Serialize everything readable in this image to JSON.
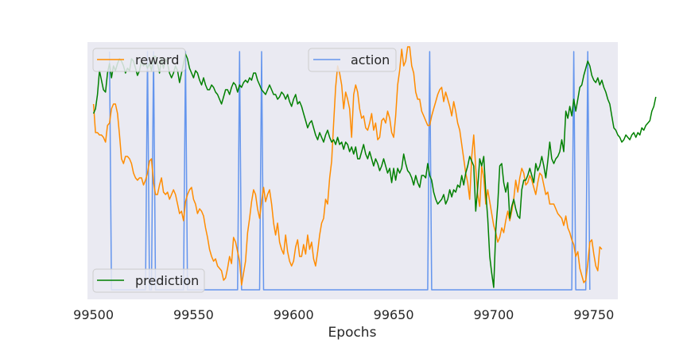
{
  "chart_data": {
    "type": "line",
    "xlabel": "Epochs",
    "ylabel": "",
    "title": "",
    "xlim": [
      99497,
      99762
    ],
    "ylim": [
      -0.04,
      1.04
    ],
    "x_ticks": [
      "99500",
      "99550",
      "99600",
      "99650",
      "99700",
      "99750"
    ],
    "x_tick_values": [
      99500,
      99550,
      99600,
      99650,
      99700,
      99750
    ],
    "grid": false,
    "background": "#eaeaf2",
    "series": [
      {
        "name": "reward",
        "color": "#ff8c00",
        "legend": "top-left",
        "x_start": 99500,
        "x_step": 1,
        "values": [
          0.78,
          0.66,
          0.66,
          0.65,
          0.65,
          0.64,
          0.62,
          0.69,
          0.7,
          0.76,
          0.78,
          0.78,
          0.74,
          0.65,
          0.55,
          0.53,
          0.56,
          0.56,
          0.55,
          0.53,
          0.49,
          0.47,
          0.46,
          0.47,
          0.47,
          0.44,
          0.46,
          0.49,
          0.54,
          0.55,
          0.45,
          0.4,
          0.4,
          0.44,
          0.47,
          0.41,
          0.4,
          0.41,
          0.38,
          0.4,
          0.42,
          0.4,
          0.36,
          0.32,
          0.33,
          0.29,
          0.37,
          0.4,
          0.42,
          0.43,
          0.38,
          0.36,
          0.32,
          0.34,
          0.33,
          0.31,
          0.26,
          0.22,
          0.17,
          0.14,
          0.12,
          0.13,
          0.1,
          0.09,
          0.08,
          0.04,
          0.05,
          0.09,
          0.14,
          0.11,
          0.22,
          0.2,
          0.16,
          0.12,
          0.02,
          0.07,
          0.12,
          0.24,
          0.3,
          0.37,
          0.42,
          0.4,
          0.34,
          0.3,
          0.37,
          0.43,
          0.37,
          0.4,
          0.42,
          0.36,
          0.28,
          0.23,
          0.28,
          0.2,
          0.17,
          0.15,
          0.23,
          0.16,
          0.12,
          0.1,
          0.12,
          0.18,
          0.21,
          0.14,
          0.14,
          0.19,
          0.15,
          0.23,
          0.17,
          0.2,
          0.13,
          0.1,
          0.16,
          0.23,
          0.28,
          0.3,
          0.38,
          0.36,
          0.47,
          0.54,
          0.7,
          0.85,
          0.94,
          0.91,
          0.86,
          0.76,
          0.83,
          0.8,
          0.76,
          0.64,
          0.82,
          0.86,
          0.83,
          0.76,
          0.72,
          0.73,
          0.68,
          0.67,
          0.7,
          0.74,
          0.67,
          0.7,
          0.63,
          0.64,
          0.71,
          0.72,
          0.7,
          0.75,
          0.72,
          0.66,
          0.64,
          0.73,
          0.86,
          0.92,
          1.01,
          0.94,
          0.96,
          1.02,
          1.02,
          0.94,
          0.91,
          0.83,
          0.8,
          0.8,
          0.75,
          0.73,
          0.71,
          0.69,
          0.69,
          0.73,
          0.76,
          0.79,
          0.82,
          0.84,
          0.85,
          0.79,
          0.83,
          0.8,
          0.77,
          0.73,
          0.79,
          0.75,
          0.7,
          0.67,
          0.61,
          0.55,
          0.49,
          0.45,
          0.38,
          0.56,
          0.65,
          0.51,
          0.4,
          0.35,
          0.52,
          0.47,
          0.36,
          0.42,
          0.37,
          0.32,
          0.27,
          0.24,
          0.2,
          0.22,
          0.26,
          0.24,
          0.29,
          0.33,
          0.29,
          0.33,
          0.38,
          0.46,
          0.41,
          0.47,
          0.51,
          0.49,
          0.44,
          0.45,
          0.48,
          0.46,
          0.43,
          0.4,
          0.45,
          0.49,
          0.48,
          0.44,
          0.4,
          0.41,
          0.36,
          0.36,
          0.36,
          0.34,
          0.32,
          0.31,
          0.3,
          0.27,
          0.31,
          0.26,
          0.24,
          0.21,
          0.19,
          0.14,
          0.16,
          0.09,
          0.06,
          0.03,
          0.04,
          0.11,
          0.2,
          0.21,
          0.15,
          0.1,
          0.08,
          0.18,
          0.17
        ]
      },
      {
        "name": "action",
        "color": "#6495ed",
        "legend": "top-center",
        "baseline": 0,
        "spike_value": 1,
        "spikes_at": [
          99508,
          99527,
          99530,
          99546,
          99573,
          99584,
          99668,
          99740,
          99747
        ]
      },
      {
        "name": "prediction",
        "color": "#008000",
        "legend": "bottom-left",
        "x_start": 99500,
        "x_step": 1,
        "values": [
          0.74,
          0.76,
          0.82,
          0.92,
          0.88,
          0.84,
          0.83,
          0.91,
          0.95,
          0.89,
          0.94,
          0.92,
          0.95,
          0.97,
          0.96,
          0.94,
          0.91,
          0.93,
          0.92,
          0.97,
          0.96,
          0.93,
          0.9,
          0.92,
          0.96,
          0.94,
          0.95,
          0.93,
          0.95,
          0.92,
          0.98,
          0.98,
          0.95,
          0.91,
          0.97,
          0.93,
          0.97,
          0.95,
          0.91,
          0.89,
          0.91,
          0.94,
          0.92,
          0.87,
          0.91,
          0.95,
          0.99,
          0.97,
          0.93,
          0.91,
          0.89,
          0.92,
          0.91,
          0.88,
          0.86,
          0.89,
          0.86,
          0.84,
          0.84,
          0.86,
          0.85,
          0.83,
          0.82,
          0.8,
          0.78,
          0.81,
          0.84,
          0.84,
          0.82,
          0.85,
          0.87,
          0.86,
          0.83,
          0.86,
          0.85,
          0.87,
          0.88,
          0.87,
          0.89,
          0.88,
          0.91,
          0.91,
          0.88,
          0.86,
          0.84,
          0.83,
          0.82,
          0.84,
          0.86,
          0.84,
          0.82,
          0.82,
          0.8,
          0.81,
          0.83,
          0.82,
          0.8,
          0.82,
          0.79,
          0.77,
          0.8,
          0.82,
          0.78,
          0.79,
          0.77,
          0.74,
          0.71,
          0.68,
          0.7,
          0.71,
          0.68,
          0.65,
          0.63,
          0.66,
          0.64,
          0.62,
          0.65,
          0.67,
          0.64,
          0.62,
          0.63,
          0.61,
          0.64,
          0.61,
          0.62,
          0.59,
          0.62,
          0.61,
          0.58,
          0.6,
          0.57,
          0.6,
          0.55,
          0.55,
          0.58,
          0.61,
          0.57,
          0.55,
          0.58,
          0.55,
          0.52,
          0.55,
          0.53,
          0.5,
          0.52,
          0.55,
          0.52,
          0.49,
          0.51,
          0.45,
          0.51,
          0.46,
          0.51,
          0.49,
          0.51,
          0.57,
          0.53,
          0.5,
          0.49,
          0.47,
          0.44,
          0.48,
          0.45,
          0.43,
          0.48,
          0.48,
          0.47,
          0.53,
          0.48,
          0.46,
          0.41,
          0.38,
          0.36,
          0.37,
          0.38,
          0.4,
          0.36,
          0.38,
          0.42,
          0.39,
          0.42,
          0.41,
          0.44,
          0.43,
          0.48,
          0.44,
          0.49,
          0.52,
          0.56,
          0.54,
          0.52,
          0.33,
          0.43,
          0.55,
          0.52,
          0.56,
          0.41,
          0.3,
          0.14,
          0.07,
          0.01,
          0.25,
          0.36,
          0.52,
          0.53,
          0.45,
          0.41,
          0.45,
          0.3,
          0.35,
          0.38,
          0.34,
          0.31,
          0.3,
          0.42,
          0.46,
          0.46,
          0.48,
          0.51,
          0.48,
          0.45,
          0.53,
          0.5,
          0.52,
          0.56,
          0.52,
          0.47,
          0.54,
          0.62,
          0.55,
          0.53,
          0.55,
          0.56,
          0.58,
          0.63,
          0.58,
          0.75,
          0.72,
          0.77,
          0.73,
          0.8,
          0.75,
          0.8,
          0.85,
          0.86,
          0.9,
          0.93,
          0.96,
          0.94,
          0.9,
          0.88,
          0.87,
          0.89,
          0.86,
          0.88,
          0.85,
          0.83,
          0.8,
          0.78,
          0.73,
          0.68,
          0.67,
          0.65,
          0.64,
          0.62,
          0.63,
          0.65,
          0.64,
          0.63,
          0.65,
          0.66,
          0.64,
          0.66,
          0.65,
          0.68,
          0.67,
          0.69,
          0.7,
          0.71,
          0.75,
          0.77,
          0.81
        ]
      }
    ]
  }
}
